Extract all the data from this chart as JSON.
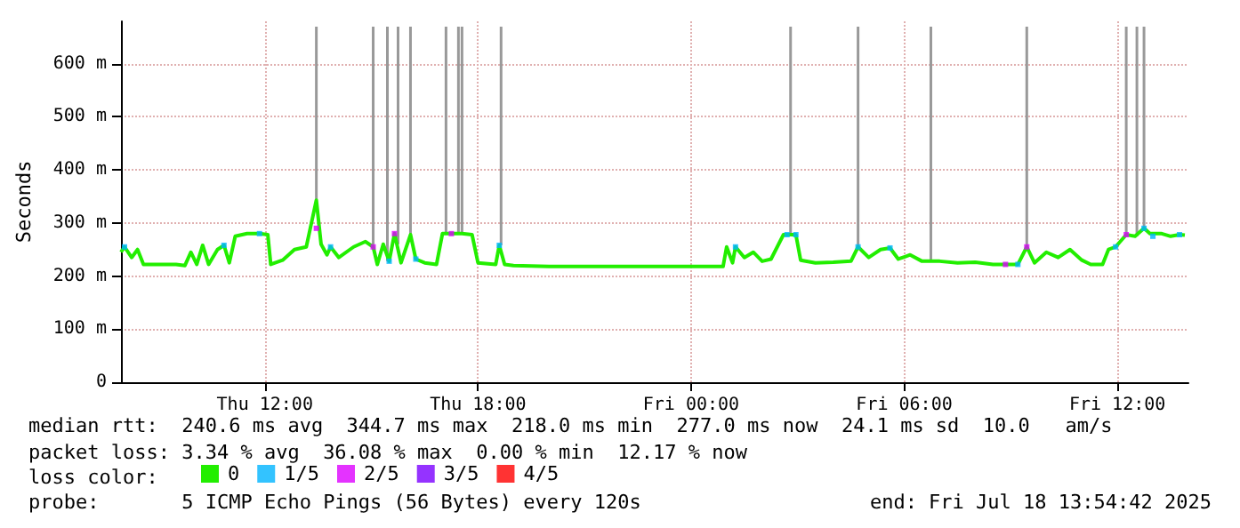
{
  "chart_data": {
    "type": "line",
    "ylabel": "Seconds",
    "legend_title": "loss color:",
    "xlim": [
      "2025-07-17T07:57",
      "2025-07-18T14:00"
    ],
    "xticks": [
      {
        "value": "2025-07-17T12:00",
        "label": "Thu 12:00"
      },
      {
        "value": "2025-07-17T18:00",
        "label": "Thu 18:00"
      },
      {
        "value": "2025-07-18T00:00",
        "label": "Fri 00:00"
      },
      {
        "value": "2025-07-18T06:00",
        "label": "Fri 06:00"
      },
      {
        "value": "2025-07-18T12:00",
        "label": "Fri 12:00"
      }
    ],
    "ylim": [
      0,
      680
    ],
    "yticks": [
      0,
      {
        "value": 100,
        "label": "100 m"
      },
      {
        "value": 200,
        "label": "200 m"
      },
      {
        "value": 300,
        "label": "300 m"
      },
      {
        "value": 400,
        "label": "400 m"
      },
      {
        "value": 500,
        "label": "500 m"
      },
      {
        "value": 600,
        "label": "600 m"
      }
    ],
    "grid": true,
    "legend": "bottom",
    "series": [
      {
        "type": "bar",
        "color": "#999999",
        "x": [
          "2025-07-17T13:27",
          "2025-07-17T15:03",
          "2025-07-17T15:27",
          "2025-07-17T15:45",
          "2025-07-17T16:06",
          "2025-07-17T17:06",
          "2025-07-17T17:27",
          "2025-07-17T17:33",
          "2025-07-17T18:39",
          "2025-07-18T02:48",
          "2025-07-18T04:42",
          "2025-07-18T06:45",
          "2025-07-18T09:27",
          "2025-07-18T12:15",
          "2025-07-18T12:33",
          "2025-07-18T12:45"
        ],
        "base": [
          343,
          255,
          228,
          260,
          278,
          280,
          280,
          280,
          258,
          278,
          255,
          228,
          255,
          278,
          275,
          290
        ],
        "values": [
          327,
          415,
          442,
          410,
          392,
          390,
          390,
          390,
          412,
          392,
          415,
          442,
          415,
          392,
          395,
          380
        ]
      },
      {
        "name": "0",
        "color": "#22ee00",
        "marker": "none",
        "x": [
          "2025-07-17T07:57",
          "2025-07-17T08:03",
          "2025-07-17T08:15",
          "2025-07-17T08:25",
          "2025-07-17T08:35",
          "2025-07-17T09:00",
          "2025-07-17T09:30",
          "2025-07-17T09:45",
          "2025-07-17T09:55",
          "2025-07-17T10:05",
          "2025-07-17T10:15",
          "2025-07-17T10:25",
          "2025-07-17T10:40",
          "2025-07-17T10:51",
          "2025-07-17T11:00",
          "2025-07-17T11:10",
          "2025-07-17T11:30",
          "2025-07-17T11:51",
          "2025-07-17T12:05",
          "2025-07-17T12:10",
          "2025-07-17T12:30",
          "2025-07-17T12:50",
          "2025-07-17T13:10",
          "2025-07-17T13:27",
          "2025-07-17T13:35",
          "2025-07-17T13:45",
          "2025-07-17T13:51",
          "2025-07-17T14:05",
          "2025-07-17T14:30",
          "2025-07-17T14:50",
          "2025-07-17T15:03",
          "2025-07-17T15:10",
          "2025-07-17T15:20",
          "2025-07-17T15:30",
          "2025-07-17T15:39",
          "2025-07-17T15:50",
          "2025-07-17T16:06",
          "2025-07-17T16:15",
          "2025-07-17T16:30",
          "2025-07-17T16:50",
          "2025-07-17T17:00",
          "2025-07-17T17:15",
          "2025-07-17T17:33",
          "2025-07-17T17:50",
          "2025-07-17T18:00",
          "2025-07-17T18:30",
          "2025-07-17T18:36",
          "2025-07-17T18:45",
          "2025-07-17T19:00",
          "2025-07-17T20:00",
          "2025-07-17T22:00",
          "2025-07-18T00:00",
          "2025-07-18T00:54",
          "2025-07-18T01:00",
          "2025-07-18T01:10",
          "2025-07-18T01:15",
          "2025-07-18T01:30",
          "2025-07-18T01:45",
          "2025-07-18T02:00",
          "2025-07-18T02:15",
          "2025-07-18T02:36",
          "2025-07-18T02:57",
          "2025-07-18T03:05",
          "2025-07-18T03:30",
          "2025-07-18T04:00",
          "2025-07-18T04:30",
          "2025-07-18T04:42",
          "2025-07-18T05:00",
          "2025-07-18T05:20",
          "2025-07-18T05:36",
          "2025-07-18T05:50",
          "2025-07-18T06:10",
          "2025-07-18T06:30",
          "2025-07-18T07:00",
          "2025-07-18T07:30",
          "2025-07-18T08:00",
          "2025-07-18T08:30",
          "2025-07-18T08:51",
          "2025-07-18T09:12",
          "2025-07-18T09:27",
          "2025-07-18T09:40",
          "2025-07-18T10:00",
          "2025-07-18T10:20",
          "2025-07-18T10:40",
          "2025-07-18T11:00",
          "2025-07-18T11:15",
          "2025-07-18T11:35",
          "2025-07-18T11:45",
          "2025-07-18T11:57",
          "2025-07-18T12:15",
          "2025-07-18T12:30",
          "2025-07-18T12:45",
          "2025-07-18T12:55",
          "2025-07-18T13:15",
          "2025-07-18T13:30",
          "2025-07-18T13:45",
          "2025-07-18T13:54"
        ],
        "values": [
          245,
          255,
          235,
          250,
          222,
          222,
          222,
          220,
          245,
          222,
          258,
          222,
          250,
          258,
          225,
          275,
          280,
          280,
          278,
          222,
          230,
          250,
          255,
          343,
          260,
          240,
          255,
          235,
          255,
          265,
          255,
          222,
          260,
          228,
          280,
          225,
          278,
          232,
          225,
          222,
          280,
          280,
          280,
          278,
          225,
          222,
          258,
          222,
          220,
          218,
          218,
          218,
          218,
          255,
          225,
          255,
          235,
          245,
          228,
          232,
          278,
          278,
          230,
          225,
          226,
          228,
          255,
          235,
          250,
          253,
          232,
          240,
          228,
          228,
          225,
          226,
          222,
          222,
          222,
          255,
          225,
          245,
          235,
          250,
          230,
          222,
          222,
          250,
          255,
          278,
          275,
          290,
          280,
          280,
          275,
          278,
          277
        ]
      },
      {
        "type": "scatter",
        "name": "1/5",
        "color": "#00b4ff",
        "marker": "square",
        "x": [
          "2025-07-17T08:03",
          "2025-07-17T10:51",
          "2025-07-17T11:51",
          "2025-07-17T13:51",
          "2025-07-17T15:30",
          "2025-07-17T16:15",
          "2025-07-17T18:36",
          "2025-07-18T01:15",
          "2025-07-18T02:42",
          "2025-07-18T02:57",
          "2025-07-18T04:42",
          "2025-07-18T05:36",
          "2025-07-18T09:12",
          "2025-07-18T11:57",
          "2025-07-18T12:45",
          "2025-07-18T13:00",
          "2025-07-18T13:45"
        ],
        "values": [
          255,
          258,
          280,
          255,
          228,
          232,
          258,
          255,
          278,
          278,
          255,
          253,
          222,
          255,
          290,
          275,
          278
        ]
      },
      {
        "type": "scatter",
        "name": "2/5",
        "color": "#dd00ff",
        "marker": "square",
        "x": [
          "2025-07-17T13:27",
          "2025-07-17T15:03",
          "2025-07-17T15:39",
          "2025-07-17T17:15",
          "2025-07-18T08:51",
          "2025-07-18T09:27",
          "2025-07-18T12:15"
        ],
        "values": [
          290,
          255,
          280,
          280,
          222,
          255,
          278
        ]
      },
      {
        "type": "scatter",
        "name": "3/5",
        "color": "#7a00ff",
        "marker": "square"
      },
      {
        "type": "scatter",
        "name": "4/5",
        "color": "#ff0000",
        "marker": "square"
      }
    ],
    "annotations": [
      "median rtt:  240.6 ms avg  344.7 ms max  218.0 ms min  277.0 ms now  24.1 ms sd  10.0   am/s",
      "packet loss: 3.34 % avg  36.08 % max  0.00 % min  12.17 % now",
      "probe:       5 ICMP Echo Pings (56 Bytes) every 120s",
      "end: Fri Jul 18 13:54:42 2025"
    ]
  }
}
